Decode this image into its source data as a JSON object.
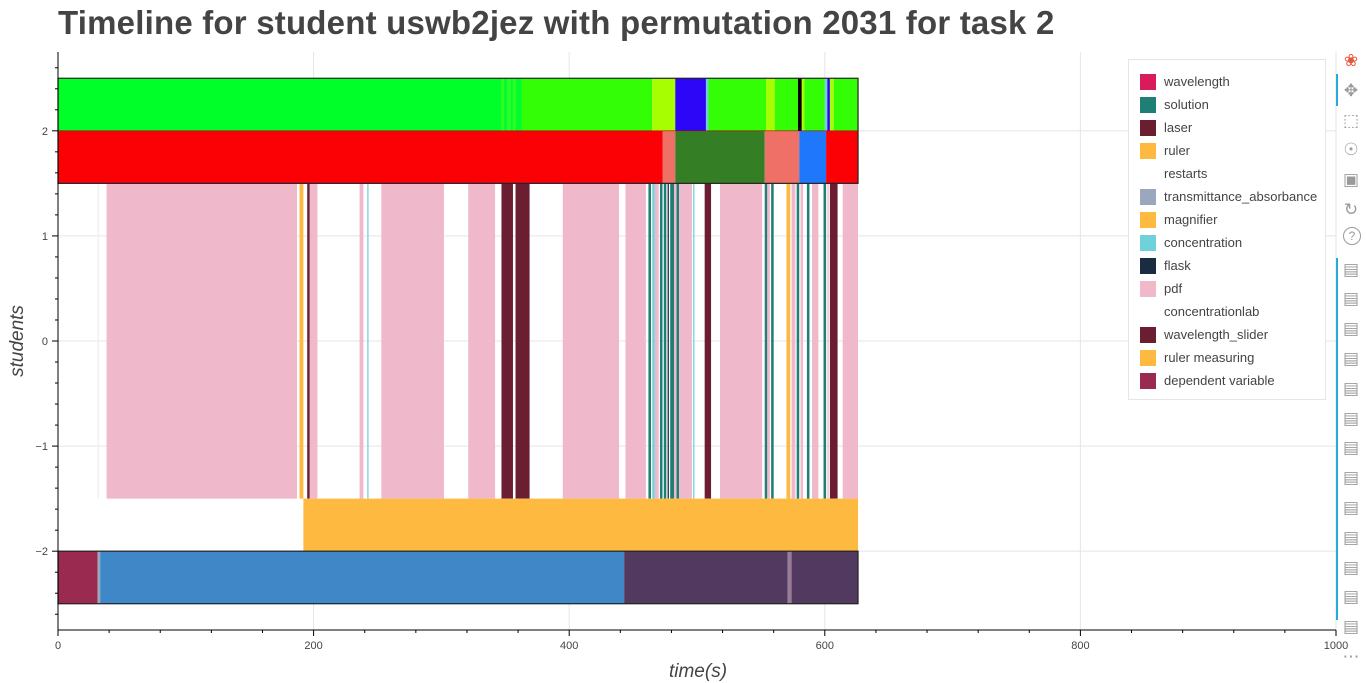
{
  "title": "Timeline for student uswb2jez with permutation 2031 for task 2",
  "colors": {
    "wavelength": "#d81b5a",
    "solution": "#1f7f74",
    "laser": "#6b1d31",
    "ruler": "#fdb940",
    "restarts": "#ffffff",
    "transmittance_absorbance": "#9aa7bd",
    "magnifier": "#fdb940",
    "concentration": "#6fd2da",
    "flask": "#1a2c40",
    "pdf": "#efb9cb",
    "concentrationlab": "#ffffff",
    "wavelength_slider": "#6b1d31",
    "ruler_measuring": "#fdb940",
    "dependent_variable": "#9a2a50"
  },
  "legend": {
    "items": [
      {
        "label": "wavelength",
        "color": "#d81b5a"
      },
      {
        "label": "solution",
        "color": "#1f7f74"
      },
      {
        "label": "laser",
        "color": "#6b1d31"
      },
      {
        "label": "ruler",
        "color": "#fdb940"
      },
      {
        "label": "restarts",
        "color": "#ffffff"
      },
      {
        "label": "transmittance_absorbance",
        "color": "#9aa7bd"
      },
      {
        "label": "magnifier",
        "color": "#fdb940"
      },
      {
        "label": "concentration",
        "color": "#6fd2da"
      },
      {
        "label": "flask",
        "color": "#1a2c40"
      },
      {
        "label": "pdf",
        "color": "#efb9cb"
      },
      {
        "label": "concentrationlab",
        "color": "#ffffff"
      },
      {
        "label": "wavelength_slider",
        "color": "#6b1d31"
      },
      {
        "label": "ruler measuring",
        "color": "#fdb940"
      },
      {
        "label": "dependent variable",
        "color": "#9a2a50"
      }
    ]
  },
  "toolbar": {
    "tools": [
      "bokeh-logo-icon",
      "pan-icon",
      "box-zoom-icon",
      "wheel-zoom-icon",
      "save-icon",
      "reset-icon",
      "help-icon",
      "hover-icon",
      "hover-icon",
      "hover-icon",
      "hover-icon",
      "hover-icon",
      "hover-icon",
      "hover-icon",
      "hover-icon",
      "hover-icon",
      "hover-icon",
      "hover-icon",
      "hover-icon",
      "hover-icon",
      "more-icon"
    ]
  },
  "chart_data": {
    "type": "timeline",
    "title": "Timeline for student uswb2jez with permutation 2031 for task 2",
    "xlabel": "time(s)",
    "ylabel": "students",
    "xlim": [
      0,
      1000
    ],
    "ylim": [
      -2.75,
      2.75
    ],
    "xticks": [
      0,
      200,
      400,
      600,
      800,
      1000
    ],
    "yticks": [
      2,
      1,
      0,
      -1,
      -2
    ],
    "ytick_labels": [
      "2",
      "1",
      "0",
      "−1",
      "−2"
    ],
    "grid": true,
    "legend_position": "top-right",
    "rows": [
      {
        "y_range": [
          2,
          2.5
        ],
        "segments": [
          [
            0,
            347,
            "#00fe28"
          ],
          [
            347,
            349,
            "#33fe22"
          ],
          [
            349,
            352,
            "#00fe28"
          ],
          [
            352,
            354,
            "#33fe22"
          ],
          [
            354,
            356,
            "#00fe28"
          ],
          [
            356,
            358,
            "#33fe22"
          ],
          [
            358,
            363,
            "#00fe28"
          ],
          [
            363,
            465,
            "#33fe05"
          ],
          [
            465,
            483,
            "#a6fe00"
          ],
          [
            483,
            507,
            "#2d06f7"
          ],
          [
            507,
            509,
            "#6fd2da"
          ],
          [
            509,
            554,
            "#33fe05"
          ],
          [
            554,
            561,
            "#a6fe00"
          ],
          [
            561,
            579,
            "#33fe05"
          ],
          [
            579,
            582,
            "#000000"
          ],
          [
            582,
            584,
            "#a6fe00"
          ],
          [
            584,
            600,
            "#33fe05"
          ],
          [
            600,
            602,
            "#6fd2da"
          ],
          [
            602,
            604,
            "#2d06f7"
          ],
          [
            604,
            607,
            "#a6fe00"
          ],
          [
            607,
            626,
            "#33fe05"
          ]
        ]
      },
      {
        "y_range": [
          1.5,
          2
        ],
        "segments": [
          [
            0,
            473,
            "#fb0005"
          ],
          [
            473,
            483,
            "#ee7067"
          ],
          [
            483,
            553,
            "#347f25"
          ],
          [
            553,
            580,
            "#ee7067"
          ],
          [
            580,
            601,
            "#1f77fb"
          ],
          [
            601,
            626,
            "#fb0005"
          ]
        ]
      },
      {
        "y_range": [
          -1.5,
          1.5
        ],
        "segments": [
          [
            31,
            32,
            "#eeeeee"
          ],
          [
            38,
            187,
            "#efb9cb"
          ],
          [
            189,
            192,
            "#fdb940"
          ],
          [
            195,
            197,
            "#6b1d31"
          ],
          [
            197,
            203,
            "#efb9cb"
          ],
          [
            236,
            239,
            "#efb9cb"
          ],
          [
            242,
            243,
            "#6fd2da"
          ],
          [
            253,
            302,
            "#efb9cb"
          ],
          [
            321,
            342,
            "#efb9cb"
          ],
          [
            347,
            356,
            "#6b1d31"
          ],
          [
            358,
            369,
            "#6b1d31"
          ],
          [
            395,
            439,
            "#efb9cb"
          ],
          [
            444,
            460,
            "#efb9cb"
          ],
          [
            462,
            464,
            "#1f7f74"
          ],
          [
            465,
            467,
            "#6fd2da"
          ],
          [
            467,
            470,
            "#efb9cb"
          ],
          [
            471,
            473,
            "#1f7f74"
          ],
          [
            474,
            476,
            "#1f7f74"
          ],
          [
            477,
            478,
            "#1a2c40"
          ],
          [
            479,
            482,
            "#1f7f74"
          ],
          [
            482,
            484,
            "#efb9cb"
          ],
          [
            484,
            486,
            "#1f7f74"
          ],
          [
            486,
            496,
            "#efb9cb"
          ],
          [
            497,
            498,
            "#6fd2da"
          ],
          [
            506,
            511,
            "#6b1d31"
          ],
          [
            518,
            551,
            "#efb9cb"
          ],
          [
            553,
            555,
            "#1f7f74"
          ],
          [
            555,
            557,
            "#efb9cb"
          ],
          [
            558,
            560,
            "#1f7f74"
          ],
          [
            570,
            573,
            "#fdb940"
          ],
          [
            574,
            577,
            "#efb9cb"
          ],
          [
            578,
            580,
            "#1f7f74"
          ],
          [
            581,
            583,
            "#efb9cb"
          ],
          [
            586,
            588,
            "#1f7f74"
          ],
          [
            590,
            595,
            "#efb9cb"
          ],
          [
            599,
            601,
            "#1f7f74"
          ],
          [
            602,
            603,
            "#efb9cb"
          ],
          [
            604,
            610,
            "#6b1d31"
          ],
          [
            614,
            626,
            "#efb9cb"
          ]
        ]
      },
      {
        "y_range": [
          -2,
          -1.5
        ],
        "segments": [
          [
            192,
            626,
            "#fdb940"
          ]
        ]
      },
      {
        "y_range": [
          -2.5,
          -2
        ],
        "segments": [
          [
            0,
            31,
            "#9a2a50"
          ],
          [
            31,
            33,
            "#9aa7bd"
          ],
          [
            33,
            443,
            "#3f87c6"
          ],
          [
            443,
            571,
            "#513960"
          ],
          [
            571,
            574,
            "#9a7c98"
          ],
          [
            574,
            626,
            "#513960"
          ]
        ]
      }
    ],
    "outlined_boxes": [
      {
        "x": [
          0,
          626
        ],
        "y": [
          1.5,
          2.5
        ]
      },
      {
        "x": [
          0,
          626
        ],
        "y": [
          -2.5,
          -2
        ]
      }
    ]
  }
}
